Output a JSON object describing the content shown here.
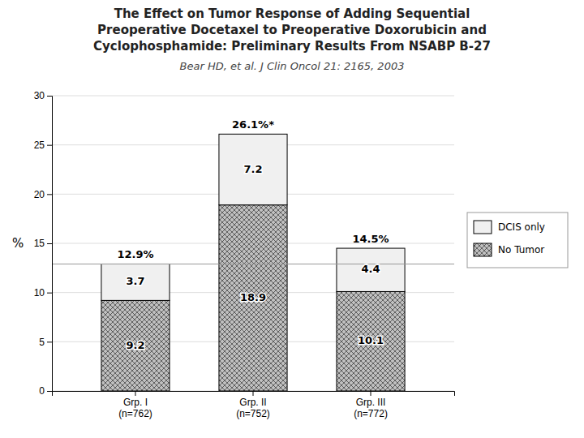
{
  "chart_data": {
    "type": "bar",
    "stacked": true,
    "title": "The Effect on Tumor Response of Adding Sequential\nPreoperative Docetaxel to Preoperative Doxorubicin and\nCyclophosphamide: Preliminary Results From NSABP B-27",
    "subtitle": "Bear HD, et al. J Clin Oncol 21: 2165, 2003",
    "y_label": "%",
    "categories": [
      "Grp. I\n(n=762)",
      "Grp. II\n(n=752)",
      "Grp. III\n(n=772)"
    ],
    "series": [
      {
        "name": "No Tumor",
        "color": "#c0c0c0",
        "values": [
          9.2,
          18.9,
          10.1
        ]
      },
      {
        "name": "DCIS only",
        "color": "#f0f0f0",
        "values": [
          3.7,
          7.2,
          4.4
        ]
      }
    ],
    "totals": [
      12.9,
      26.1,
      14.5
    ],
    "total_labels": [
      "12.9%",
      "26.1%*",
      "14.5%"
    ],
    "reference_line": {
      "value": 12.9,
      "color": "#999999"
    },
    "ylim": [
      0,
      30
    ],
    "yticks": [
      0,
      5,
      10,
      15,
      20,
      25,
      30
    ],
    "grid": true,
    "data_labels": true,
    "legend": "right"
  }
}
